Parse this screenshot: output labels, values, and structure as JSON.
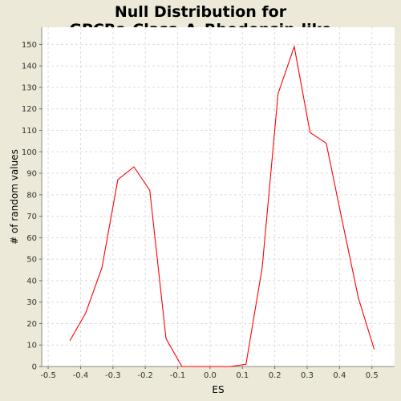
{
  "chart_data": {
    "type": "line",
    "title": "Null Distribution for GPCRs_Class_A_Rhodopsin-like",
    "xlabel": "ES",
    "ylabel": "# of random values",
    "xlim": [
      -0.52,
      0.57
    ],
    "ylim": [
      0,
      158
    ],
    "xticks": [
      "-0.5",
      "-0.4",
      "-0.3",
      "-0.2",
      "-0.1",
      "0.0",
      "0.1",
      "0.2",
      "0.3",
      "0.4",
      "0.5"
    ],
    "yticks": [
      "0",
      "10",
      "20",
      "30",
      "40",
      "50",
      "60",
      "70",
      "80",
      "90",
      "100",
      "110",
      "120",
      "130",
      "140",
      "150"
    ],
    "grid": true,
    "series": [
      {
        "color": "#ff0000",
        "x": [
          -0.433,
          -0.384,
          -0.334,
          -0.285,
          -0.235,
          -0.186,
          -0.136,
          -0.087,
          -0.037,
          0.012,
          0.062,
          0.111,
          0.161,
          0.21,
          0.26,
          0.309,
          0.359,
          0.408,
          0.458,
          0.507
        ],
        "y": [
          12,
          25,
          46,
          87,
          93,
          82,
          13,
          0,
          0,
          0,
          0,
          1,
          46,
          127,
          149,
          109,
          104,
          68,
          32,
          8
        ]
      }
    ]
  }
}
